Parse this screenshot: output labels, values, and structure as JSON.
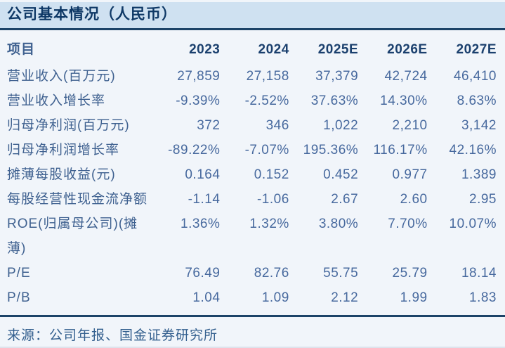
{
  "title": "公司基本情况（人民币）",
  "table": {
    "headers": [
      "项目",
      "2023",
      "2024",
      "2025E",
      "2026E",
      "2027E"
    ],
    "rows": [
      {
        "label": "营业收入(百万元)",
        "values": [
          "27,859",
          "27,158",
          "37,379",
          "42,724",
          "46,410"
        ]
      },
      {
        "label": "营业收入增长率",
        "values": [
          "-9.39%",
          "-2.52%",
          "37.63%",
          "14.30%",
          "8.63%"
        ]
      },
      {
        "label": "归母净利润(百万元)",
        "values": [
          "372",
          "346",
          "1,022",
          "2,210",
          "3,142"
        ]
      },
      {
        "label": "归母净利润增长率",
        "values": [
          "-89.22%",
          "-7.07%",
          "195.36%",
          "116.17%",
          "42.16%"
        ]
      },
      {
        "label": "摊薄每股收益(元)",
        "values": [
          "0.164",
          "0.152",
          "0.452",
          "0.977",
          "1.389"
        ]
      },
      {
        "label": "每股经营性现金流净额",
        "values": [
          "-1.14",
          "-1.06",
          "2.67",
          "2.60",
          "2.95"
        ]
      },
      {
        "label": "ROE(归属母公司)(摊薄)",
        "values": [
          "1.36%",
          "1.32%",
          "3.80%",
          "7.70%",
          "10.07%"
        ]
      },
      {
        "label": "P/E",
        "values": [
          "76.49",
          "82.76",
          "55.75",
          "25.79",
          "18.14"
        ]
      },
      {
        "label": "P/B",
        "values": [
          "1.04",
          "1.09",
          "2.12",
          "1.99",
          "1.83"
        ]
      }
    ]
  },
  "source_note": "来源：公司年报、国金证券研究所",
  "colors": {
    "title_bar_bg": "#cfe1f1",
    "page_bg": "#f1f5fa",
    "title_text": "#0e3866",
    "header_text": "#1b406e",
    "label_text": "#3f6190",
    "value_text": "#47699e",
    "rule": "#1c4368",
    "footer_text": "#34608f"
  }
}
